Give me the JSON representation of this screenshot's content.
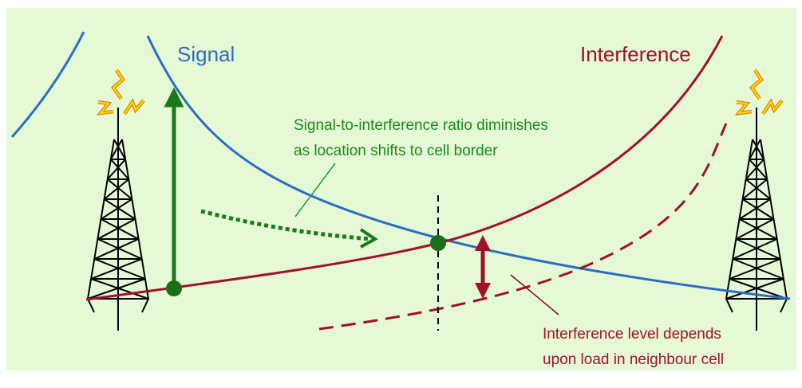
{
  "labels": {
    "signal": "Signal",
    "interference": "Interference"
  },
  "annotations": {
    "sir": [
      "Signal-to-interference ratio diminishes",
      "as location shifts to cell border"
    ],
    "load": [
      "Interference level depends",
      "upon load in neighbour cell"
    ]
  }
}
